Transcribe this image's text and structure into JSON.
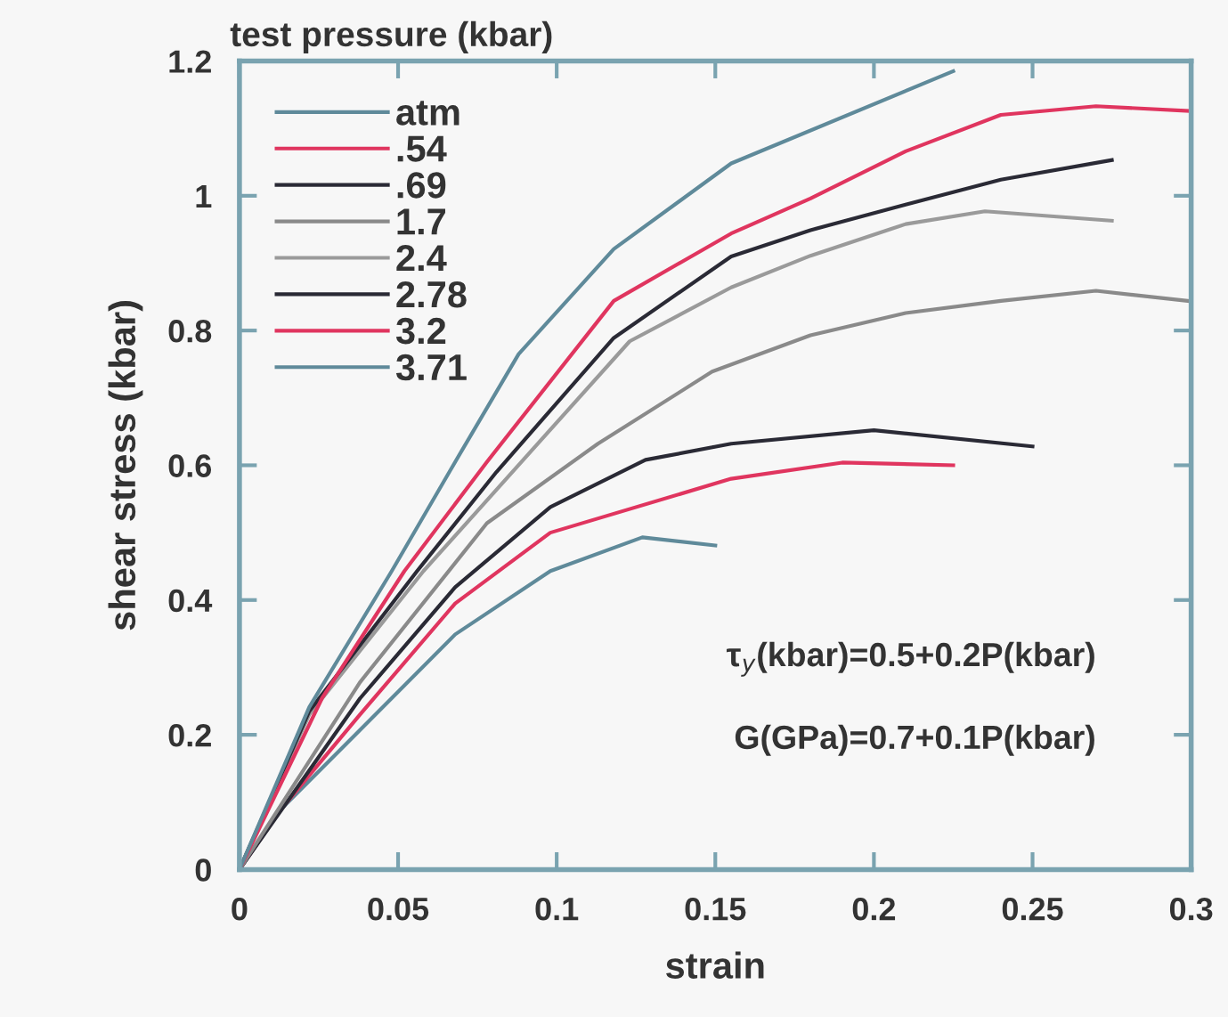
{
  "chart_data": {
    "type": "line",
    "title": "test pressure (kbar)",
    "xlabel": "strain",
    "ylabel": "shear stress (kbar)",
    "xlim": [
      0,
      0.3
    ],
    "xticks": [
      0,
      0.05,
      0.1,
      0.15,
      0.2,
      0.25,
      0.3
    ],
    "ylim": [
      0,
      1.2
    ],
    "yticks": [
      0,
      0.2,
      0.4,
      0.6,
      0.8,
      1,
      1.2
    ],
    "grid": false,
    "legend": "top left",
    "marker": "none",
    "line_style": "solid",
    "annotations": [
      "τ$_{y}$(kbar)=0.5+0.2P(kbar)",
      "G(GPa)=0.7+0.1P(kbar)"
    ],
    "series": [
      {
        "name": "atm",
        "color": "#5f8a9a",
        "x": [
          0,
          0.013,
          0.038,
          0.068,
          0.098,
          0.127,
          0.15
        ],
        "values": [
          0,
          0.089,
          0.207,
          0.349,
          0.443,
          0.493,
          0.481
        ]
      },
      {
        "name": ".54",
        "color": "#e0355f",
        "x": [
          0,
          0.013,
          0.038,
          0.068,
          0.098,
          0.155,
          0.19,
          0.225
        ],
        "values": [
          0,
          0.089,
          0.23,
          0.395,
          0.5,
          0.58,
          0.604,
          0.6
        ]
      },
      {
        "name": ".69",
        "color": "#2a2a35",
        "x": [
          0,
          0.038,
          0.068,
          0.098,
          0.128,
          0.155,
          0.2,
          0.25
        ],
        "values": [
          0,
          0.254,
          0.419,
          0.538,
          0.608,
          0.632,
          0.652,
          0.628
        ]
      },
      {
        "name": "1.7",
        "color": "#8a8a8a",
        "x": [
          0,
          0.038,
          0.078,
          0.113,
          0.149,
          0.18,
          0.21,
          0.24,
          0.27,
          0.299
        ],
        "values": [
          0,
          0.278,
          0.514,
          0.632,
          0.739,
          0.793,
          0.826,
          0.844,
          0.859,
          0.844
        ]
      },
      {
        "name": "2.4",
        "color": "#9a9a9a",
        "x": [
          0,
          0.022,
          0.058,
          0.123,
          0.155,
          0.18,
          0.21,
          0.235,
          0.275
        ],
        "values": [
          0,
          0.23,
          0.443,
          0.784,
          0.864,
          0.911,
          0.958,
          0.977,
          0.963
        ]
      },
      {
        "name": "2.78",
        "color": "#2a2a35",
        "x": [
          0,
          0.022,
          0.056,
          0.081,
          0.118,
          0.155,
          0.18,
          0.21,
          0.24,
          0.275
        ],
        "values": [
          0,
          0.235,
          0.443,
          0.59,
          0.789,
          0.91,
          0.949,
          0.987,
          1.024,
          1.053
        ]
      },
      {
        "name": "3.2",
        "color": "#e0355f",
        "x": [
          0,
          0.026,
          0.052,
          0.078,
          0.118,
          0.155,
          0.18,
          0.21,
          0.24,
          0.27,
          0.299
        ],
        "values": [
          0,
          0.254,
          0.443,
          0.605,
          0.844,
          0.944,
          0.996,
          1.066,
          1.12,
          1.133,
          1.126
        ]
      },
      {
        "name": "3.71",
        "color": "#5f8a9a",
        "x": [
          0,
          0.022,
          0.048,
          0.068,
          0.088,
          0.118,
          0.155,
          0.225
        ],
        "values": [
          0,
          0.241,
          0.443,
          0.605,
          0.765,
          0.921,
          1.048,
          1.185
        ]
      }
    ]
  }
}
